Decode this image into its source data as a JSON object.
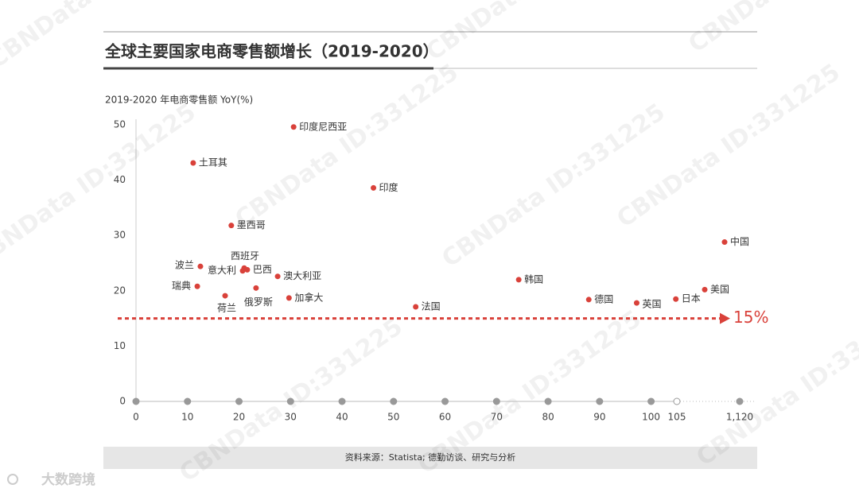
{
  "chart_data": {
    "type": "scatter",
    "title": "全球主要国家电商零售额增长（2019-2020）",
    "y_label": "2019-2020 年电商零售额 YoY(%)",
    "labels": [
      "印度尼西亚",
      "土耳其",
      "印度",
      "墨西哥",
      "西班牙",
      "波兰",
      "意大利",
      "巴西",
      "澳大利亚",
      "瑞典",
      "俄罗斯",
      "荷兰",
      "加拿大",
      "法国",
      "韩国",
      "德国",
      "英国",
      "日本",
      "美国",
      "中国"
    ],
    "x": [
      30.6,
      11.1,
      46.1,
      18.5,
      21.0,
      12.5,
      20.7,
      21.6,
      27.5,
      11.9,
      23.3,
      17.3,
      29.7,
      54.3,
      74.3,
      87.9,
      97.2,
      104.8,
      555,
      876
    ],
    "values": [
      49.6,
      43.1,
      38.6,
      31.8,
      24.1,
      24.4,
      23.6,
      23.8,
      22.6,
      20.8,
      20.5,
      19.1,
      18.7,
      17.1,
      22.0,
      18.4,
      17.8,
      18.5,
      20.2,
      28.8
    ],
    "color": "#d9413a",
    "xlim": [
      0,
      1120
    ],
    "xticks": [
      0,
      10,
      20,
      30,
      40,
      50,
      60,
      70,
      80,
      90,
      100,
      105,
      {
        "value": 1120,
        "label": "1,120"
      }
    ],
    "ylim": [
      0,
      50
    ],
    "yticks": [
      0,
      10,
      20,
      30,
      40,
      50
    ],
    "reference_line": {
      "value": 15,
      "label": "15%"
    },
    "source": "资料来源：Statista; 德勤访谈、研究与分析",
    "logo": "大数跨境",
    "watermark": "CBNData ID:331225"
  }
}
